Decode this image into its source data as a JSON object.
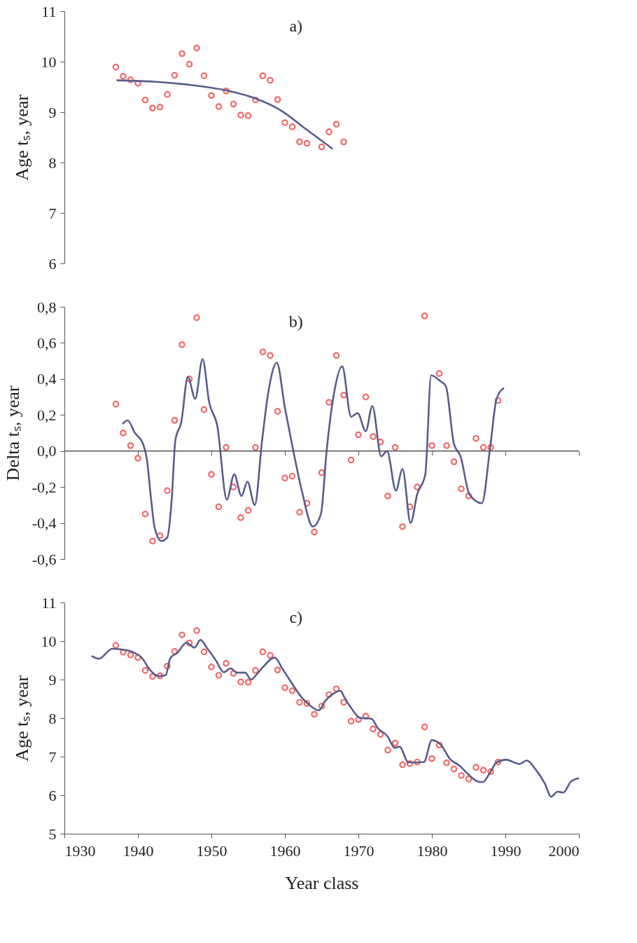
{
  "chart_data": [
    {
      "type": "scatter",
      "title": "a)",
      "ylabel": "Age tₛ, year",
      "xlim": [
        1930,
        2000
      ],
      "ylim": [
        6,
        11
      ],
      "yticks": [
        6,
        7,
        8,
        9,
        10,
        11
      ],
      "tick_labels": "y",
      "grid": false,
      "marker": "circle",
      "series": [
        {
          "color": "#f06a6a",
          "x": [
            1937,
            1938,
            1939,
            1940,
            1941,
            1942,
            1943,
            1944,
            1945,
            1946,
            1947,
            1948,
            1949,
            1950,
            1951,
            1952,
            1953,
            1954,
            1955,
            1956,
            1957,
            1958,
            1959,
            1960,
            1961,
            1962,
            1963,
            1964,
            1965,
            1966,
            1967,
            1968
          ],
          "values": [
            9.89,
            9.71,
            9.64,
            9.57,
            9.24,
            9.08,
            9.1,
            9.35,
            9.73,
            10.16,
            9.95,
            10.27,
            9.72,
            9.33,
            9.11,
            9.42,
            9.16,
            8.94,
            8.93,
            9.24,
            9.72,
            9.63,
            9.25,
            8.79,
            8.71,
            8.41,
            8.38,
            null,
            8.31,
            8.61,
            8.76,
            8.41
          ]
        },
        {
          "type": "line",
          "marker": "none",
          "color": "#585c8c",
          "x": [
            1937.1,
            1942.3,
            1947.0,
            1952.0,
            1955.8,
            1959.6,
            1962.7,
            1966.5
          ],
          "values": [
            9.63,
            9.6,
            9.54,
            9.43,
            9.28,
            9.02,
            8.68,
            8.27
          ]
        }
      ]
    },
    {
      "type": "scatter",
      "title": "b)",
      "ylabel": "Delta tₛ, year",
      "xlim": [
        1930,
        2000
      ],
      "xticks": [
        {
          "value": 1940,
          "label": null
        },
        {
          "value": 1950,
          "label": null
        },
        {
          "value": 1960,
          "label": null
        },
        {
          "value": 1970,
          "label": null
        },
        {
          "value": 1980,
          "label": null
        },
        {
          "value": 1990,
          "label": null
        },
        {
          "value": 2000,
          "label": null
        }
      ],
      "ylim": [
        -0.6,
        0.8
      ],
      "yticks": [
        {
          "value": -0.6,
          "label": "-0,6"
        },
        {
          "value": -0.4,
          "label": "-0,4"
        },
        {
          "value": -0.2,
          "label": "-0,2"
        },
        {
          "value": 0,
          "label": "0,0"
        },
        {
          "value": 0.2,
          "label": "0,2"
        },
        {
          "value": 0.4,
          "label": "0,4"
        },
        {
          "value": 0.6,
          "label": "0,6"
        },
        {
          "value": 0.8,
          "label": "0,8"
        }
      ],
      "tick_labels": "y",
      "grid": false,
      "marker": "circle",
      "ref_lines": [
        {
          "axis": "y",
          "value": 0,
          "color": "#555555"
        }
      ],
      "series": [
        {
          "color": "#f06a6a",
          "x": [
            1937,
            1938,
            1939,
            1940,
            1941,
            1942,
            1943,
            1944,
            1945,
            1946,
            1947,
            1948,
            1949,
            1950,
            1951,
            1952,
            1953,
            1954,
            1955,
            1956,
            1957,
            1958,
            1959,
            1960,
            1961,
            1962,
            1963,
            1964,
            1965,
            1966,
            1967,
            1968,
            1969,
            1970,
            1971,
            1972,
            1973,
            1974,
            1975,
            1976,
            1977,
            1978,
            1979,
            1980,
            1981,
            1982,
            1983,
            1984,
            1985,
            1986,
            1987,
            1988,
            1989
          ],
          "values": [
            0.26,
            0.1,
            0.03,
            -0.04,
            -0.35,
            -0.5,
            -0.47,
            -0.22,
            0.17,
            0.59,
            0.4,
            0.74,
            0.23,
            -0.13,
            -0.31,
            0.02,
            -0.2,
            -0.37,
            -0.33,
            0.02,
            0.55,
            0.53,
            0.22,
            -0.15,
            -0.14,
            -0.34,
            -0.29,
            -0.45,
            -0.12,
            0.27,
            0.53,
            0.31,
            -0.05,
            0.09,
            0.3,
            0.08,
            0.05,
            -0.25,
            0.02,
            -0.42,
            -0.31,
            -0.2,
            0.75,
            0.03,
            0.43,
            0.03,
            -0.06,
            -0.21,
            -0.25,
            0.07,
            0.02,
            0.02,
            0.28
          ]
        },
        {
          "type": "line",
          "marker": "none",
          "color": "#585c8c",
          "x": [
            1937.9,
            1938.6,
            1939.6,
            1940.7,
            1941.2,
            1941.8,
            1942.3,
            1943.2,
            1944.0,
            1944.6,
            1945.1,
            1945.9,
            1946.8,
            1947.8,
            1948.8,
            1949.7,
            1950.8,
            1952.1,
            1953.1,
            1954.1,
            1954.9,
            1955.9,
            1956.9,
            1957.8,
            1958.9,
            1960.0,
            1961.1,
            1962.3,
            1963.8,
            1964.9,
            1965.7,
            1966.6,
            1967.8,
            1969.0,
            1969.9,
            1971.0,
            1971.9,
            1973.1,
            1973.9,
            1975.1,
            1976.0,
            1977.1,
            1978.0,
            1979.1,
            1979.9,
            1981.1,
            1981.9,
            1983.0,
            1983.9,
            1985.1,
            1986.8,
            1987.9,
            1988.8,
            1989.8
          ],
          "values": [
            0.15,
            0.17,
            0.1,
            0.04,
            -0.04,
            -0.27,
            -0.43,
            -0.5,
            -0.48,
            -0.27,
            0.06,
            0.16,
            0.41,
            0.29,
            0.51,
            0.27,
            0.14,
            -0.27,
            -0.13,
            -0.25,
            -0.17,
            -0.3,
            0.06,
            0.34,
            0.49,
            0.24,
            0.01,
            -0.22,
            -0.42,
            -0.35,
            0.01,
            0.3,
            0.47,
            0.19,
            0.21,
            0.11,
            0.25,
            -0.03,
            0.0,
            -0.22,
            -0.1,
            -0.4,
            -0.24,
            -0.13,
            0.42,
            0.39,
            0.36,
            0.04,
            -0.03,
            -0.24,
            -0.29,
            0.01,
            0.29,
            0.35
          ]
        }
      ]
    },
    {
      "type": "scatter",
      "title": "c)",
      "xlabel": "Year class",
      "ylabel": "Age tₛ, year",
      "xlim": [
        1930,
        2000
      ],
      "xticks": [
        1930,
        1940,
        1950,
        1960,
        1970,
        1980,
        1990,
        2000
      ],
      "ylim": [
        5,
        11
      ],
      "yticks": [
        5,
        6,
        7,
        8,
        9,
        10,
        11
      ],
      "grid": false,
      "marker": "circle",
      "series": [
        {
          "color": "#f06a6a",
          "x": [
            1937,
            1938,
            1939,
            1940,
            1941,
            1942,
            1943,
            1944,
            1945,
            1946,
            1947,
            1948,
            1949,
            1950,
            1951,
            1952,
            1953,
            1954,
            1955,
            1956,
            1957,
            1958,
            1959,
            1960,
            1961,
            1962,
            1963,
            1964,
            1965,
            1966,
            1967,
            1968,
            1969,
            1970,
            1971,
            1972,
            1973,
            1974,
            1975,
            1976,
            1977,
            1978,
            1979,
            1980,
            1981,
            1982,
            1983,
            1984,
            1985,
            1986,
            1987,
            1988,
            1989
          ],
          "values": [
            9.89,
            9.71,
            9.64,
            9.57,
            9.24,
            9.08,
            9.1,
            9.35,
            9.73,
            10.16,
            9.95,
            10.27,
            9.72,
            9.33,
            9.11,
            9.42,
            9.16,
            8.94,
            8.93,
            9.24,
            9.72,
            9.63,
            9.25,
            8.79,
            8.71,
            8.41,
            8.38,
            8.1,
            8.31,
            8.61,
            8.76,
            8.41,
            7.92,
            7.96,
            8.05,
            7.72,
            7.58,
            7.17,
            7.35,
            6.79,
            6.82,
            6.86,
            7.77,
            6.95,
            7.3,
            6.84,
            6.68,
            6.51,
            6.42,
            6.72,
            6.65,
            6.61,
            6.86
          ]
        },
        {
          "type": "line",
          "marker": "none",
          "color": "#585c8c",
          "x": [
            1933.7,
            1934.7,
            1936.5,
            1937.8,
            1939.1,
            1940.6,
            1941.6,
            1942.8,
            1943.8,
            1944.4,
            1945.4,
            1946.6,
            1947.7,
            1948.5,
            1949.5,
            1950.6,
            1951.7,
            1952.6,
            1953.5,
            1954.6,
            1955.4,
            1956.1,
            1957.0,
            1958.6,
            1959.7,
            1961.1,
            1962.4,
            1963.6,
            1964.6,
            1965.5,
            1966.4,
            1967.6,
            1968.0,
            1969.0,
            1970.2,
            1971.8,
            1972.6,
            1974.0,
            1974.9,
            1975.6,
            1976.8,
            1978.9,
            1980.0,
            1981.2,
            1982.5,
            1983.8,
            1985.0,
            1986.3,
            1986.9,
            1987.9,
            1988.8,
            1990.1,
            1991.9,
            1992.9,
            1994.1,
            1995.4,
            1996.2,
            1997.1,
            1997.9,
            1998.9,
            2000.0
          ],
          "values": [
            9.61,
            9.54,
            9.8,
            9.78,
            9.73,
            9.55,
            9.26,
            9.09,
            9.12,
            9.55,
            9.7,
            9.96,
            9.83,
            10.03,
            9.79,
            9.5,
            9.19,
            9.29,
            9.18,
            9.18,
            9.0,
            9.12,
            9.32,
            9.57,
            9.27,
            8.86,
            8.51,
            8.3,
            8.2,
            8.45,
            8.61,
            8.71,
            8.57,
            8.27,
            8.01,
            7.98,
            7.75,
            7.52,
            7.23,
            7.26,
            6.85,
            6.86,
            7.43,
            7.31,
            6.93,
            6.76,
            6.53,
            6.35,
            6.34,
            6.58,
            6.85,
            6.92,
            6.81,
            6.9,
            6.67,
            6.29,
            5.96,
            6.09,
            6.07,
            6.35,
            6.44
          ]
        }
      ]
    }
  ]
}
